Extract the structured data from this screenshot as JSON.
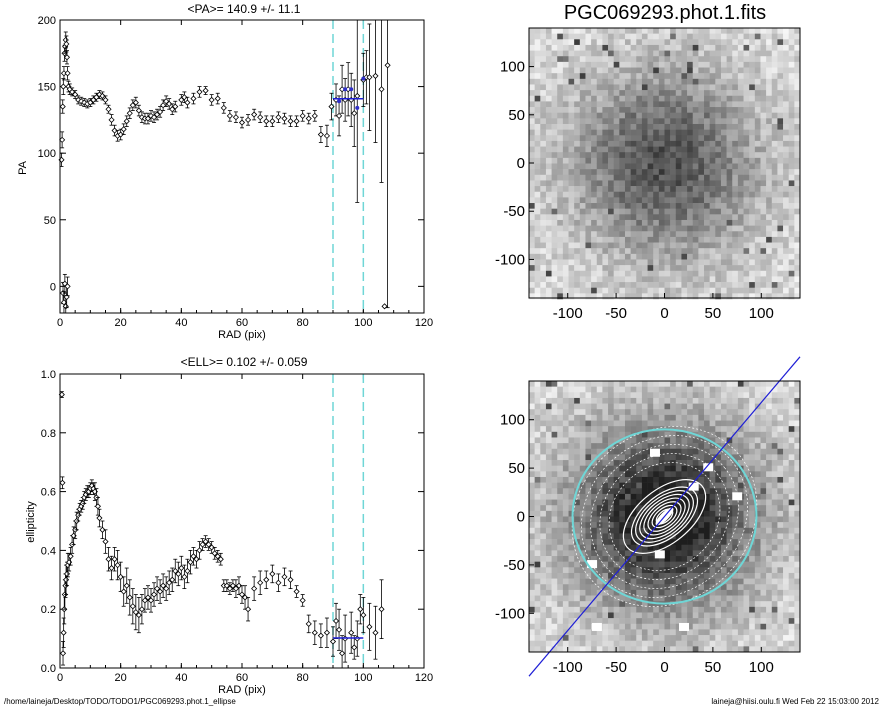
{
  "figure": {
    "footer_left": "/home/laineja/Desktop/TODO/TODO1/PGC069293.phot.1_ellipse",
    "footer_right": "laineja@hiisi.oulu.fi  Wed Feb 22 15:03:00 2012"
  },
  "colors": {
    "data": "#000000",
    "mean_line": "#1f1fd6",
    "range_lines": "#6fd6d6",
    "mean_points": "#3030c8",
    "ellipses": "#ffffff",
    "outer_ellipse": "#6fd6d6"
  },
  "chart_data": [
    {
      "type": "scatter",
      "title": "<PA>= 140.9 +/-  11.1",
      "xlabel": "RAD (pix)",
      "ylabel": "PA",
      "xlim": [
        0,
        120
      ],
      "ylim": [
        -20,
        200
      ],
      "xticks": [
        0,
        20,
        40,
        60,
        80,
        100,
        120
      ],
      "yticks": [
        0,
        50,
        100,
        150,
        200
      ],
      "mean": 140.9,
      "mean_range": [
        90,
        100
      ],
      "range_lines": [
        90,
        100
      ],
      "points": [
        [
          0.5,
          95,
          5
        ],
        [
          0.7,
          110,
          6
        ],
        [
          0.9,
          135,
          5
        ],
        [
          1.1,
          150,
          6
        ],
        [
          1.3,
          160,
          5
        ],
        [
          1.5,
          175,
          6
        ],
        [
          1.7,
          180,
          5
        ],
        [
          1.9,
          185,
          6
        ],
        [
          2.1,
          182,
          6
        ],
        [
          2.3,
          172,
          5
        ],
        [
          2.5,
          160,
          5
        ],
        [
          2.8,
          150,
          4
        ],
        [
          1.0,
          -5,
          8
        ],
        [
          1.3,
          -12,
          8
        ],
        [
          1.6,
          2,
          7
        ],
        [
          1.9,
          -15,
          8
        ],
        [
          2.2,
          -8,
          8
        ],
        [
          2.5,
          0,
          7
        ],
        [
          3.2,
          148,
          4
        ],
        [
          4,
          146,
          3
        ],
        [
          5,
          144,
          3
        ],
        [
          6,
          140,
          3
        ],
        [
          7,
          139,
          3
        ],
        [
          8,
          138,
          3
        ],
        [
          9,
          137,
          3
        ],
        [
          10,
          138,
          3
        ],
        [
          11,
          140,
          3
        ],
        [
          12,
          142,
          3
        ],
        [
          13,
          144,
          3
        ],
        [
          14,
          143,
          3
        ],
        [
          15,
          140,
          3
        ],
        [
          16,
          133,
          3
        ],
        [
          17,
          125,
          4
        ],
        [
          18,
          117,
          4
        ],
        [
          19,
          113,
          4
        ],
        [
          20,
          114,
          4
        ],
        [
          21,
          118,
          4
        ],
        [
          22,
          124,
          4
        ],
        [
          23,
          130,
          4
        ],
        [
          24,
          136,
          4
        ],
        [
          25,
          138,
          4
        ],
        [
          26,
          132,
          4
        ],
        [
          27,
          127,
          4
        ],
        [
          28,
          126,
          4
        ],
        [
          29,
          126,
          4
        ],
        [
          30,
          128,
          4
        ],
        [
          31,
          127,
          4
        ],
        [
          32,
          129,
          4
        ],
        [
          33,
          131,
          4
        ],
        [
          34,
          136,
          4
        ],
        [
          35,
          139,
          4
        ],
        [
          36,
          137,
          4
        ],
        [
          37,
          133,
          4
        ],
        [
          38,
          135,
          4
        ],
        [
          40,
          140,
          4
        ],
        [
          41,
          142,
          4
        ],
        [
          42,
          138,
          4
        ],
        [
          44,
          141,
          4
        ],
        [
          46,
          146,
          4
        ],
        [
          48,
          147,
          3
        ],
        [
          50,
          140,
          4
        ],
        [
          52,
          141,
          4
        ],
        [
          54,
          134,
          4
        ],
        [
          56,
          128,
          4
        ],
        [
          58,
          127,
          4
        ],
        [
          60,
          123,
          4
        ],
        [
          62,
          125,
          4
        ],
        [
          64,
          129,
          4
        ],
        [
          66,
          127,
          4
        ],
        [
          68,
          124,
          4
        ],
        [
          70,
          124,
          4
        ],
        [
          72,
          127,
          4
        ],
        [
          74,
          126,
          4
        ],
        [
          76,
          124,
          4
        ],
        [
          78,
          124,
          4
        ],
        [
          80,
          128,
          4
        ],
        [
          82,
          126,
          4
        ],
        [
          84,
          128,
          4
        ],
        [
          86,
          114,
          6
        ],
        [
          88,
          113,
          8
        ],
        [
          89.5,
          135,
          10
        ],
        [
          91,
          140,
          12
        ],
        [
          92,
          128,
          15
        ],
        [
          93,
          148,
          18
        ],
        [
          94,
          140,
          16
        ],
        [
          95,
          148,
          20
        ],
        [
          96,
          140,
          20
        ],
        [
          97,
          130,
          25
        ],
        [
          98,
          143,
          80
        ],
        [
          100,
          155,
          20
        ],
        [
          101,
          157,
          20
        ],
        [
          102,
          157,
          40
        ],
        [
          104,
          158,
          50
        ],
        [
          106,
          148,
          70
        ],
        [
          107,
          -15,
          0
        ],
        [
          108,
          166,
          182
        ]
      ],
      "blue_points": [
        [
          92,
          139
        ],
        [
          94,
          148
        ],
        [
          96,
          148
        ],
        [
          98,
          134
        ],
        [
          100,
          156
        ]
      ]
    },
    {
      "type": "image",
      "title": "PGC069293.phot.1.fits",
      "xlim": [
        -140,
        140
      ],
      "ylim": [
        -140,
        140
      ],
      "xticks": [
        -100,
        -50,
        0,
        50,
        100
      ],
      "yticks": [
        -100,
        -50,
        0,
        50,
        100
      ]
    },
    {
      "type": "scatter",
      "title": "<ELL>= 0.102 +/-  0.059",
      "xlabel": "RAD (pix)",
      "ylabel": "ellipticity",
      "xlim": [
        0,
        120
      ],
      "ylim": [
        0.0,
        1.0
      ],
      "xticks": [
        0,
        20,
        40,
        60,
        80,
        100,
        120
      ],
      "yticks": [
        0.0,
        0.2,
        0.4,
        0.6,
        0.8,
        1.0
      ],
      "ytick_labels": [
        "0.0",
        "0.2",
        "0.4",
        "0.6",
        "0.8",
        "1.0"
      ],
      "mean": 0.102,
      "mean_range": [
        90,
        100
      ],
      "range_lines": [
        90,
        100
      ],
      "points": [
        [
          0.6,
          0.93,
          0.01
        ],
        [
          0.8,
          0.63,
          0.02
        ],
        [
          1.0,
          0.05,
          0.04
        ],
        [
          1.2,
          0.12,
          0.05
        ],
        [
          1.4,
          0.2,
          0.05
        ],
        [
          1.6,
          0.25,
          0.05
        ],
        [
          1.8,
          0.28,
          0.04
        ],
        [
          2.0,
          0.3,
          0.05
        ],
        [
          2.3,
          0.32,
          0.04
        ],
        [
          2.6,
          0.35,
          0.04
        ],
        [
          3.0,
          0.36,
          0.03
        ],
        [
          3.5,
          0.38,
          0.03
        ],
        [
          4,
          0.42,
          0.03
        ],
        [
          4.5,
          0.45,
          0.03
        ],
        [
          5,
          0.47,
          0.03
        ],
        [
          5.5,
          0.5,
          0.03
        ],
        [
          6,
          0.52,
          0.02
        ],
        [
          6.5,
          0.54,
          0.02
        ],
        [
          7,
          0.55,
          0.02
        ],
        [
          7.5,
          0.56,
          0.02
        ],
        [
          8,
          0.58,
          0.02
        ],
        [
          8.5,
          0.59,
          0.02
        ],
        [
          9,
          0.6,
          0.02
        ],
        [
          9.5,
          0.6,
          0.02
        ],
        [
          10,
          0.61,
          0.02
        ],
        [
          10.5,
          0.62,
          0.02
        ],
        [
          11,
          0.61,
          0.02
        ],
        [
          11.5,
          0.6,
          0.03
        ],
        [
          12,
          0.58,
          0.03
        ],
        [
          12.5,
          0.55,
          0.03
        ],
        [
          13,
          0.51,
          0.03
        ],
        [
          14,
          0.47,
          0.03
        ],
        [
          15,
          0.43,
          0.04
        ],
        [
          16,
          0.37,
          0.04
        ],
        [
          17,
          0.34,
          0.04
        ],
        [
          18,
          0.37,
          0.04
        ],
        [
          19,
          0.35,
          0.05
        ],
        [
          20,
          0.31,
          0.05
        ],
        [
          21,
          0.26,
          0.05
        ],
        [
          22,
          0.28,
          0.06
        ],
        [
          23,
          0.24,
          0.06
        ],
        [
          24,
          0.21,
          0.06
        ],
        [
          25,
          0.19,
          0.06
        ],
        [
          26,
          0.18,
          0.06
        ],
        [
          27,
          0.2,
          0.05
        ],
        [
          28,
          0.23,
          0.04
        ],
        [
          29,
          0.24,
          0.04
        ],
        [
          30,
          0.23,
          0.04
        ],
        [
          31,
          0.25,
          0.04
        ],
        [
          32,
          0.27,
          0.04
        ],
        [
          33,
          0.26,
          0.04
        ],
        [
          34,
          0.28,
          0.04
        ],
        [
          35,
          0.27,
          0.04
        ],
        [
          36,
          0.29,
          0.04
        ],
        [
          37,
          0.3,
          0.04
        ],
        [
          38,
          0.33,
          0.04
        ],
        [
          39,
          0.32,
          0.04
        ],
        [
          40,
          0.34,
          0.04
        ],
        [
          41,
          0.31,
          0.04
        ],
        [
          42,
          0.33,
          0.04
        ],
        [
          43,
          0.36,
          0.04
        ],
        [
          44,
          0.38,
          0.03
        ],
        [
          45,
          0.37,
          0.03
        ],
        [
          46,
          0.4,
          0.03
        ],
        [
          47,
          0.42,
          0.02
        ],
        [
          48,
          0.43,
          0.02
        ],
        [
          49,
          0.42,
          0.02
        ],
        [
          50,
          0.41,
          0.02
        ],
        [
          51,
          0.39,
          0.02
        ],
        [
          52,
          0.38,
          0.02
        ],
        [
          53,
          0.37,
          0.02
        ],
        [
          54,
          0.28,
          0.02
        ],
        [
          55,
          0.28,
          0.02
        ],
        [
          56,
          0.27,
          0.02
        ],
        [
          57,
          0.28,
          0.02
        ],
        [
          58,
          0.27,
          0.03
        ],
        [
          59,
          0.28,
          0.03
        ],
        [
          60,
          0.25,
          0.03
        ],
        [
          61,
          0.24,
          0.04
        ],
        [
          62,
          0.2,
          0.04
        ],
        [
          64,
          0.27,
          0.04
        ],
        [
          66,
          0.29,
          0.04
        ],
        [
          68,
          0.3,
          0.03
        ],
        [
          70,
          0.32,
          0.03
        ],
        [
          72,
          0.29,
          0.03
        ],
        [
          74,
          0.31,
          0.03
        ],
        [
          76,
          0.3,
          0.03
        ],
        [
          78,
          0.26,
          0.02
        ],
        [
          80,
          0.23,
          0.02
        ],
        [
          82,
          0.15,
          0.03
        ],
        [
          84,
          0.12,
          0.04
        ],
        [
          86,
          0.11,
          0.04
        ],
        [
          88,
          0.12,
          0.05
        ],
        [
          90,
          0.09,
          0.05
        ],
        [
          91,
          0.16,
          0.06
        ],
        [
          92,
          0.13,
          0.07
        ],
        [
          93,
          0.05,
          0.06
        ],
        [
          94,
          0.1,
          0.08
        ],
        [
          96,
          0.12,
          0.07
        ],
        [
          97,
          0.07,
          0.04
        ],
        [
          98,
          0.1,
          0.06
        ],
        [
          99,
          0.2,
          0.05
        ],
        [
          100,
          0.18,
          0.06
        ],
        [
          102,
          0.14,
          0.08
        ],
        [
          104,
          0.12,
          0.09
        ],
        [
          106,
          0.2,
          0.1
        ]
      ]
    },
    {
      "type": "image",
      "title": "",
      "xlim": [
        -140,
        140
      ],
      "ylim": [
        -140,
        140
      ],
      "xticks": [
        -100,
        -50,
        0,
        50,
        100
      ],
      "yticks": [
        -100,
        -50,
        0,
        50,
        100
      ],
      "overlay": "isophote ellipses with position-angle line",
      "ellipse_semi_axes": [
        5,
        10,
        15,
        20,
        25,
        30,
        35,
        40,
        50,
        60,
        70,
        80,
        90,
        100
      ],
      "ellipticity": 0.102,
      "position_angle_deg": 140.9
    }
  ]
}
